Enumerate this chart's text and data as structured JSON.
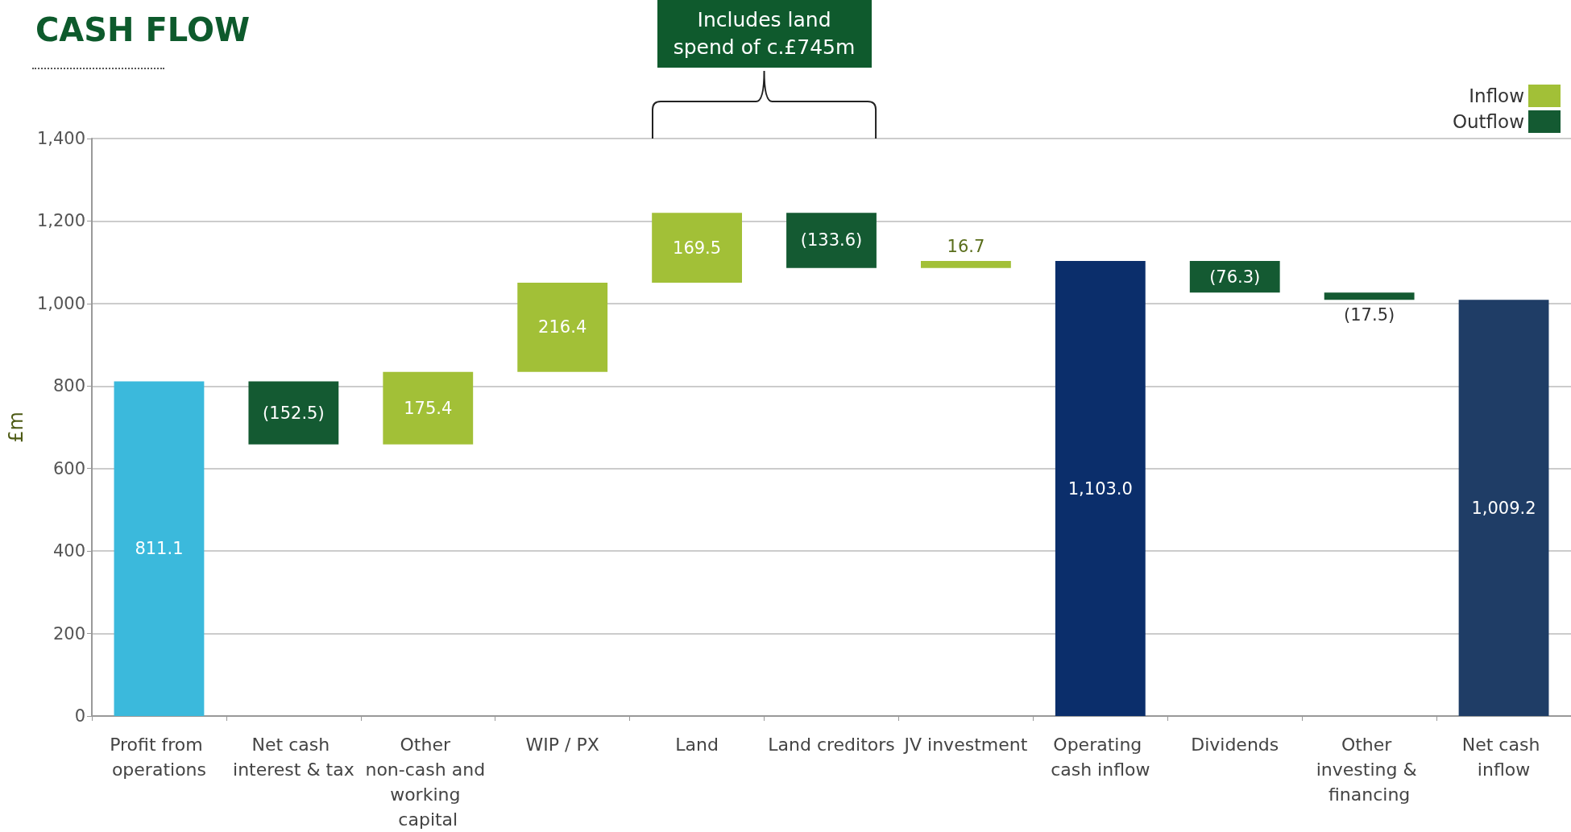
{
  "chart_data": {
    "type": "bar",
    "title": "CASH FLOW",
    "ylabel": "£m",
    "categories": [
      "Profit from operations",
      "Net cash interest & tax",
      "Other non-cash and working capital",
      "WIP / PX",
      "Land",
      "Land creditors",
      "JV investment",
      "Operating cash inflow",
      "Dividends",
      "Other investing & financing",
      "Net cash inflow"
    ],
    "series": [
      {
        "name": "Inflow",
        "color": "#a2c037",
        "values": [
          null,
          null,
          175.4,
          216.4,
          169.5,
          null,
          16.7,
          null,
          null,
          null,
          null
        ],
        "base": [
          null,
          null,
          658.6,
          834.0,
          1050.4,
          null,
          1086.3,
          null,
          null,
          null,
          null
        ],
        "value_labels": [
          null,
          null,
          "175.4",
          "216.4",
          "169.5",
          null,
          "16.7",
          null,
          null,
          null,
          null
        ]
      },
      {
        "name": "Outflow",
        "color": "#145a32",
        "values": [
          null,
          -152.5,
          null,
          null,
          null,
          -133.6,
          null,
          null,
          -76.3,
          -17.5,
          null
        ],
        "base": [
          null,
          811.1,
          null,
          null,
          null,
          1219.9,
          null,
          null,
          1103.0,
          1026.7,
          null
        ],
        "value_labels": [
          null,
          "(152.5)",
          null,
          null,
          null,
          "(133.6)",
          null,
          null,
          "(76.3)",
          "(17.5)",
          null
        ]
      },
      {
        "colors": [
          "#3bb9dc",
          null,
          null,
          null,
          null,
          null,
          null,
          "#0b2e6b",
          null,
          null,
          "#1f3d66"
        ],
        "values": [
          811.1,
          null,
          null,
          null,
          null,
          null,
          null,
          1103.0,
          null,
          null,
          1009.2
        ],
        "base": [
          0,
          null,
          null,
          null,
          null,
          null,
          null,
          0,
          null,
          null,
          0
        ],
        "value_labels": [
          "811.1",
          null,
          null,
          null,
          null,
          null,
          null,
          "1,103.0",
          null,
          null,
          "1,009.2"
        ]
      }
    ],
    "ylim": [
      0,
      1400
    ],
    "yticks": [
      0,
      200,
      400,
      600,
      800,
      {
        "value": 1000,
        "label": "1,000"
      },
      {
        "value": 1200,
        "label": "1,200"
      },
      {
        "value": 1400,
        "label": "1,400"
      }
    ],
    "grid": "y",
    "legend": "top right",
    "annotations": [
      "Includes land spend of c.£745m"
    ]
  }
}
